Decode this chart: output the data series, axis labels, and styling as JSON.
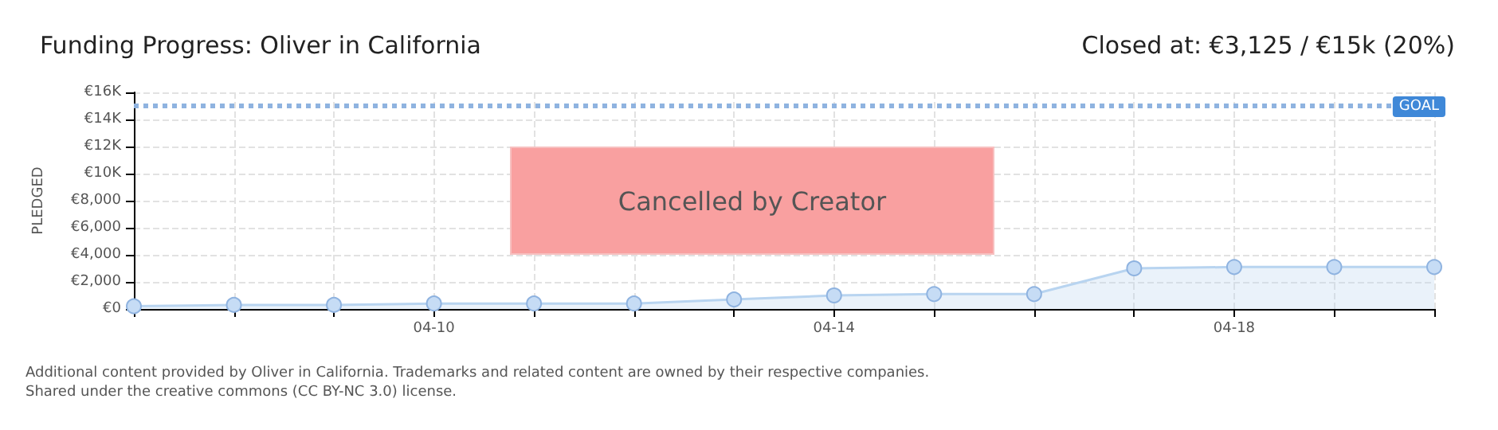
{
  "chart_data": {
    "type": "area",
    "title": "Funding Progress: Oliver in California",
    "subtitle": "Closed at: €3,125 / €15k (20%)",
    "ylabel": "PLEDGED",
    "categories": [
      null,
      null,
      null,
      "04-10",
      null,
      null,
      null,
      "04-14",
      null,
      null,
      null,
      "04-18",
      null,
      null
    ],
    "series": [
      {
        "color": "#b8d4f0",
        "values": [
          200,
          300,
          300,
          400,
          400,
          400,
          700,
          1000,
          1100,
          1100,
          3000,
          3100,
          3100,
          3100
        ]
      }
    ],
    "ylim": [
      0,
      16000
    ],
    "yticks": [
      {
        "value": 0,
        "label": "€0"
      },
      {
        "value": 2000,
        "label": "€2,000"
      },
      {
        "value": 4000,
        "label": "€4,000"
      },
      {
        "value": 6000,
        "label": "€6,000"
      },
      {
        "value": 8000,
        "label": "€8,000"
      },
      {
        "value": 10000,
        "label": "€10K"
      },
      {
        "value": 12000,
        "label": "€12K"
      },
      {
        "value": 14000,
        "label": "€14K"
      },
      {
        "value": 16000,
        "label": "€16K"
      }
    ],
    "ref_lines": [
      {
        "axis": "y",
        "value": 15000,
        "label": "GOAL",
        "color": "#8fb3e0",
        "line_style": "dotted"
      }
    ],
    "annotations": [
      "Cancelled by Creator",
      "Additional content provided by Oliver in California. Trademarks and related content are owned by their respective companies.",
      "Shared under the creative commons (CC BY-NC 3.0) license."
    ],
    "grid": true,
    "marker": "circle",
    "line_style": "solid"
  }
}
